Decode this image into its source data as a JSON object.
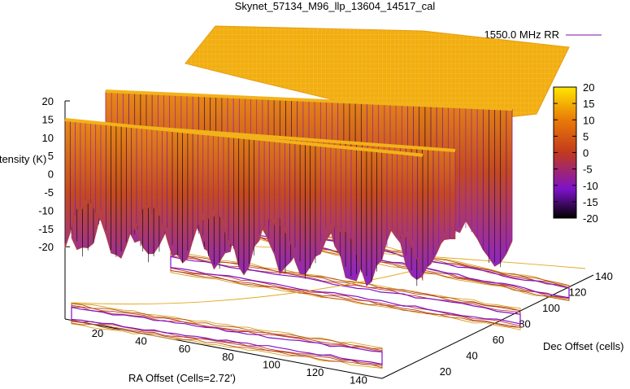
{
  "chart_data": {
    "type": "surface",
    "title": "Skynet_57134_M96_llp_13604_14517_cal",
    "legend": {
      "label": "1550.0 MHz RR",
      "color": "#9b3fb0",
      "placement": "top-right"
    },
    "zlabel": "Intensity (K)",
    "xlabel": "RA Offset (Cells=2.72')",
    "ylabel": "Dec Offset (cells)",
    "zlim": [
      -20,
      20
    ],
    "z_ticks": [
      "20",
      "15",
      "10",
      "5",
      "0",
      "-5",
      "-10",
      "-15",
      "-20"
    ],
    "x_ticks": [
      "20",
      "40",
      "60",
      "80",
      "100",
      "120",
      "140"
    ],
    "y_ticks": [
      "20",
      "40",
      "60",
      "80",
      "100",
      "120",
      "140"
    ],
    "colorbar": {
      "range": [
        -20,
        20
      ],
      "ticks": [
        "20",
        "15",
        "10",
        "5",
        "0",
        "-5",
        "-10",
        "-15",
        "-20"
      ],
      "palette": [
        "#000000",
        "#7d12c9",
        "#c13a1d",
        "#e97a08",
        "#ffe600"
      ]
    },
    "surface_plateau_intensity": 17,
    "trough_min_intensity": -20,
    "grid": false
  }
}
